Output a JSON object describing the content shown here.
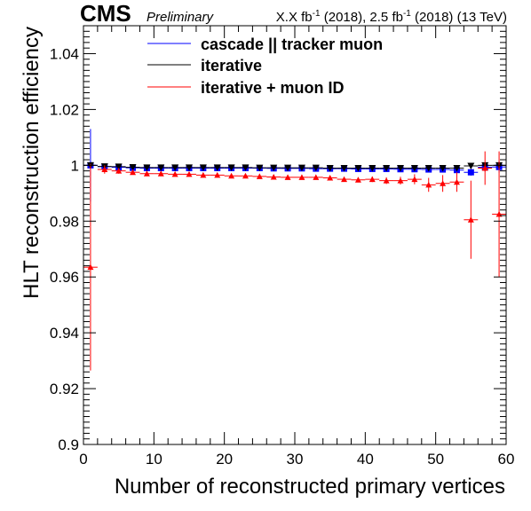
{
  "header": {
    "experiment": "CMS",
    "status": "Preliminary",
    "lumi_prefix": "X.X fb",
    "lumi_mid": " (2018), 2.5 fb",
    "lumi_suffix": " (2018) (13 TeV)",
    "lumi_exp": "-1"
  },
  "chart_data": {
    "type": "scatter",
    "title": "",
    "xlabel": "Number of reconstructed primary vertices",
    "ylabel": "HLT reconstruction efficiency",
    "xlim": [
      0,
      60
    ],
    "ylim": [
      0.9,
      1.05
    ],
    "xticks": [
      0,
      10,
      20,
      30,
      40,
      50,
      60
    ],
    "yticks": [
      0.9,
      0.92,
      0.94,
      0.96,
      0.98,
      1,
      1.02,
      1.04
    ],
    "ytick_labels": [
      "0.9",
      "0.92",
      "0.94",
      "0.96",
      "0.98",
      "1",
      "1.02",
      "1.04"
    ],
    "x_err": 1,
    "legend_position": "top-center",
    "grid": false,
    "series": [
      {
        "name": "cascade || tracker muon",
        "color": "#0000ff",
        "marker": "square",
        "x": [
          1,
          3,
          5,
          7,
          9,
          11,
          13,
          15,
          17,
          19,
          21,
          23,
          25,
          27,
          29,
          31,
          33,
          35,
          37,
          39,
          41,
          43,
          45,
          47,
          49,
          51,
          53,
          55,
          57,
          59
        ],
        "y": [
          1.0,
          0.9995,
          0.9993,
          0.9991,
          0.999,
          0.999,
          0.999,
          0.999,
          0.999,
          0.999,
          0.999,
          0.999,
          0.999,
          0.9989,
          0.9989,
          0.9989,
          0.9988,
          0.9988,
          0.9988,
          0.9987,
          0.9987,
          0.9987,
          0.9986,
          0.9986,
          0.9985,
          0.9985,
          0.9983,
          0.9975,
          0.9993,
          0.9994
        ],
        "yerr": [
          0.013,
          0.0008,
          0.0005,
          0.0004,
          0.0003,
          0.0003,
          0.0003,
          0.0003,
          0.0003,
          0.0003,
          0.0003,
          0.0003,
          0.0003,
          0.0003,
          0.0003,
          0.0003,
          0.0003,
          0.0003,
          0.0004,
          0.0004,
          0.0004,
          0.0004,
          0.0005,
          0.0005,
          0.0006,
          0.0007,
          0.0009,
          0.0012,
          0.0015,
          0.002
        ]
      },
      {
        "name": "iterative",
        "color": "#000000",
        "marker": "down-triangle",
        "x": [
          1,
          3,
          5,
          7,
          9,
          11,
          13,
          15,
          17,
          19,
          21,
          23,
          25,
          27,
          29,
          31,
          33,
          35,
          37,
          39,
          41,
          43,
          45,
          47,
          49,
          51,
          53,
          55,
          57,
          59
        ],
        "y": [
          1.0,
          0.9996,
          0.9995,
          0.9993,
          0.9992,
          0.9992,
          0.9992,
          0.9992,
          0.9992,
          0.9992,
          0.9992,
          0.9992,
          0.9991,
          0.9991,
          0.9991,
          0.9991,
          0.9991,
          0.999,
          0.999,
          0.999,
          0.999,
          0.999,
          0.999,
          0.999,
          0.999,
          0.999,
          0.999,
          0.9998,
          1.0,
          1.0
        ],
        "yerr": [
          0.0,
          0.0006,
          0.0004,
          0.0003,
          0.0003,
          0.0003,
          0.0003,
          0.0003,
          0.0003,
          0.0003,
          0.0003,
          0.0003,
          0.0003,
          0.0003,
          0.0003,
          0.0003,
          0.0003,
          0.0003,
          0.0003,
          0.0003,
          0.0004,
          0.0004,
          0.0004,
          0.0005,
          0.0005,
          0.0006,
          0.0007,
          0.0008,
          0.0,
          0.0
        ]
      },
      {
        "name": "iterative + muon ID",
        "color": "#ff0000",
        "marker": "up-triangle",
        "x": [
          1,
          3,
          5,
          7,
          9,
          11,
          13,
          15,
          17,
          19,
          21,
          23,
          25,
          27,
          29,
          31,
          33,
          35,
          37,
          39,
          41,
          43,
          45,
          47,
          49,
          51,
          53,
          55,
          57,
          59
        ],
        "y": [
          0.9635,
          0.9985,
          0.998,
          0.9975,
          0.997,
          0.997,
          0.9968,
          0.9968,
          0.9965,
          0.9965,
          0.9962,
          0.9962,
          0.996,
          0.9958,
          0.9957,
          0.9957,
          0.9957,
          0.9955,
          0.995,
          0.9948,
          0.995,
          0.9945,
          0.9945,
          0.995,
          0.993,
          0.9935,
          0.994,
          0.9805,
          0.999,
          0.9825
        ],
        "yerr": [
          0.037,
          0.0015,
          0.001,
          0.0008,
          0.0006,
          0.0006,
          0.0005,
          0.0005,
          0.0005,
          0.0005,
          0.0005,
          0.0005,
          0.0005,
          0.0005,
          0.0006,
          0.0006,
          0.0006,
          0.0007,
          0.0008,
          0.0009,
          0.001,
          0.0012,
          0.0014,
          0.0018,
          0.0025,
          0.003,
          0.0035,
          0.014,
          0.006,
          0.0225
        ]
      }
    ]
  }
}
